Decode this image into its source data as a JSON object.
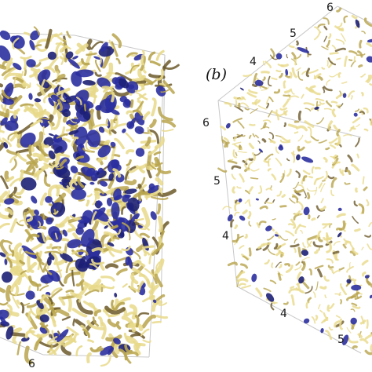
{
  "panels": [
    {
      "id": "a",
      "label": "",
      "ticks": {
        "bottom": [
          "6"
        ]
      }
    },
    {
      "id": "b",
      "label": "(b)",
      "ticks": {
        "top": [
          "4",
          "5",
          "6"
        ],
        "left": [
          "6",
          "5",
          "4"
        ],
        "bottom": [
          "4",
          "5"
        ]
      }
    }
  ],
  "colors": {
    "background": "#ffffff",
    "box_edge": "#c8c8c8",
    "tube_yellow": "#e8d98a",
    "tube_olive": "#b8a44c",
    "tube_brown": "#6d5a2c",
    "blob_blue": "#2b2f9e",
    "blob_blue_dark": "#1d2076"
  }
}
